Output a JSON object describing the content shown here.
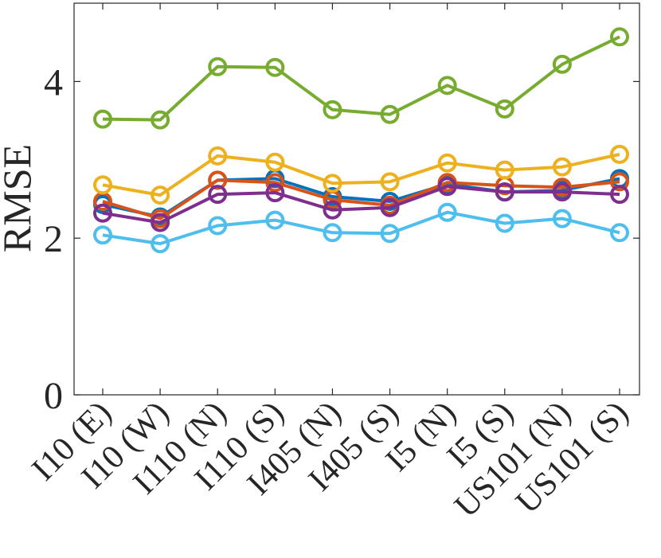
{
  "chart_data": {
    "type": "line",
    "xlabel": "",
    "ylabel": "RMSE",
    "categories": [
      "I10 (E)",
      "I10 (W)",
      "I110 (N)",
      "I110 (S)",
      "I405 (N)",
      "I405 (S)",
      "I5 (N)",
      "I5 (S)",
      "US101 (N)",
      "US101 (S)"
    ],
    "ylim": [
      0,
      5
    ],
    "yticks": [
      0,
      2,
      4
    ],
    "ytick_labels": [
      "0",
      "2",
      "4"
    ],
    "grid": false,
    "series": [
      {
        "color": "#0072BD",
        "values": [
          2.43,
          2.27,
          2.74,
          2.76,
          2.53,
          2.47,
          2.69,
          2.59,
          2.61,
          2.76
        ]
      },
      {
        "color": "#D95319",
        "values": [
          2.47,
          2.25,
          2.74,
          2.71,
          2.49,
          2.42,
          2.71,
          2.67,
          2.65,
          2.72
        ]
      },
      {
        "color": "#EDB120",
        "values": [
          2.68,
          2.55,
          3.05,
          2.97,
          2.7,
          2.72,
          2.96,
          2.87,
          2.91,
          3.07
        ]
      },
      {
        "color": "#7E2F8E",
        "values": [
          2.32,
          2.2,
          2.56,
          2.58,
          2.36,
          2.39,
          2.66,
          2.59,
          2.59,
          2.56
        ]
      },
      {
        "color": "#77AC30",
        "values": [
          3.52,
          3.51,
          4.19,
          4.18,
          3.64,
          3.58,
          3.95,
          3.65,
          4.22,
          4.57
        ]
      },
      {
        "color": "#4DBEEE",
        "values": [
          2.04,
          1.93,
          2.16,
          2.23,
          2.07,
          2.06,
          2.33,
          2.19,
          2.25,
          2.07
        ]
      }
    ]
  }
}
